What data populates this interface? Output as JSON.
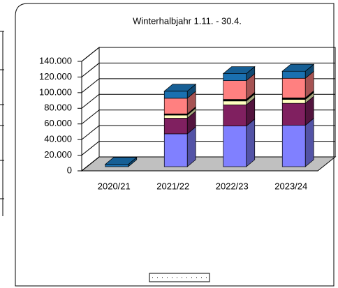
{
  "chart_data": {
    "type": "bar3d_stacked",
    "title": "Winterhalbjahr 1.11. - 30.4.",
    "categories": [
      "2020/21",
      "2021/22",
      "2022/23",
      "2023/24"
    ],
    "series": [
      {
        "color": "#8080ff",
        "values": [
          0,
          42000,
          52000,
          53000
        ]
      },
      {
        "color": "#802060",
        "values": [
          0,
          20000,
          27000,
          28000
        ]
      },
      {
        "color": "#ffffc0",
        "values": [
          0,
          4000,
          5000,
          5000
        ]
      },
      {
        "color": "#000000",
        "values": [
          0,
          1500,
          2000,
          2000
        ]
      },
      {
        "color": "#ff8080",
        "values": [
          0,
          20000,
          24000,
          25000
        ]
      },
      {
        "color": "#1a70b0",
        "values": [
          3000,
          9000,
          9000,
          9000
        ]
      }
    ],
    "ylim": [
      0,
      140000
    ],
    "yticks": [
      {
        "value": 0,
        "label": "0"
      },
      {
        "value": 20000,
        "label": "20.000"
      },
      {
        "value": 40000,
        "label": "40.000"
      },
      {
        "value": 60000,
        "label": "60.000"
      },
      {
        "value": 80000,
        "label": "80.000"
      },
      {
        "value": 100000,
        "label": "100.000"
      },
      {
        "value": 120000,
        "label": "120.000"
      },
      {
        "value": 140000,
        "label": "140.000"
      }
    ],
    "grid": true
  }
}
